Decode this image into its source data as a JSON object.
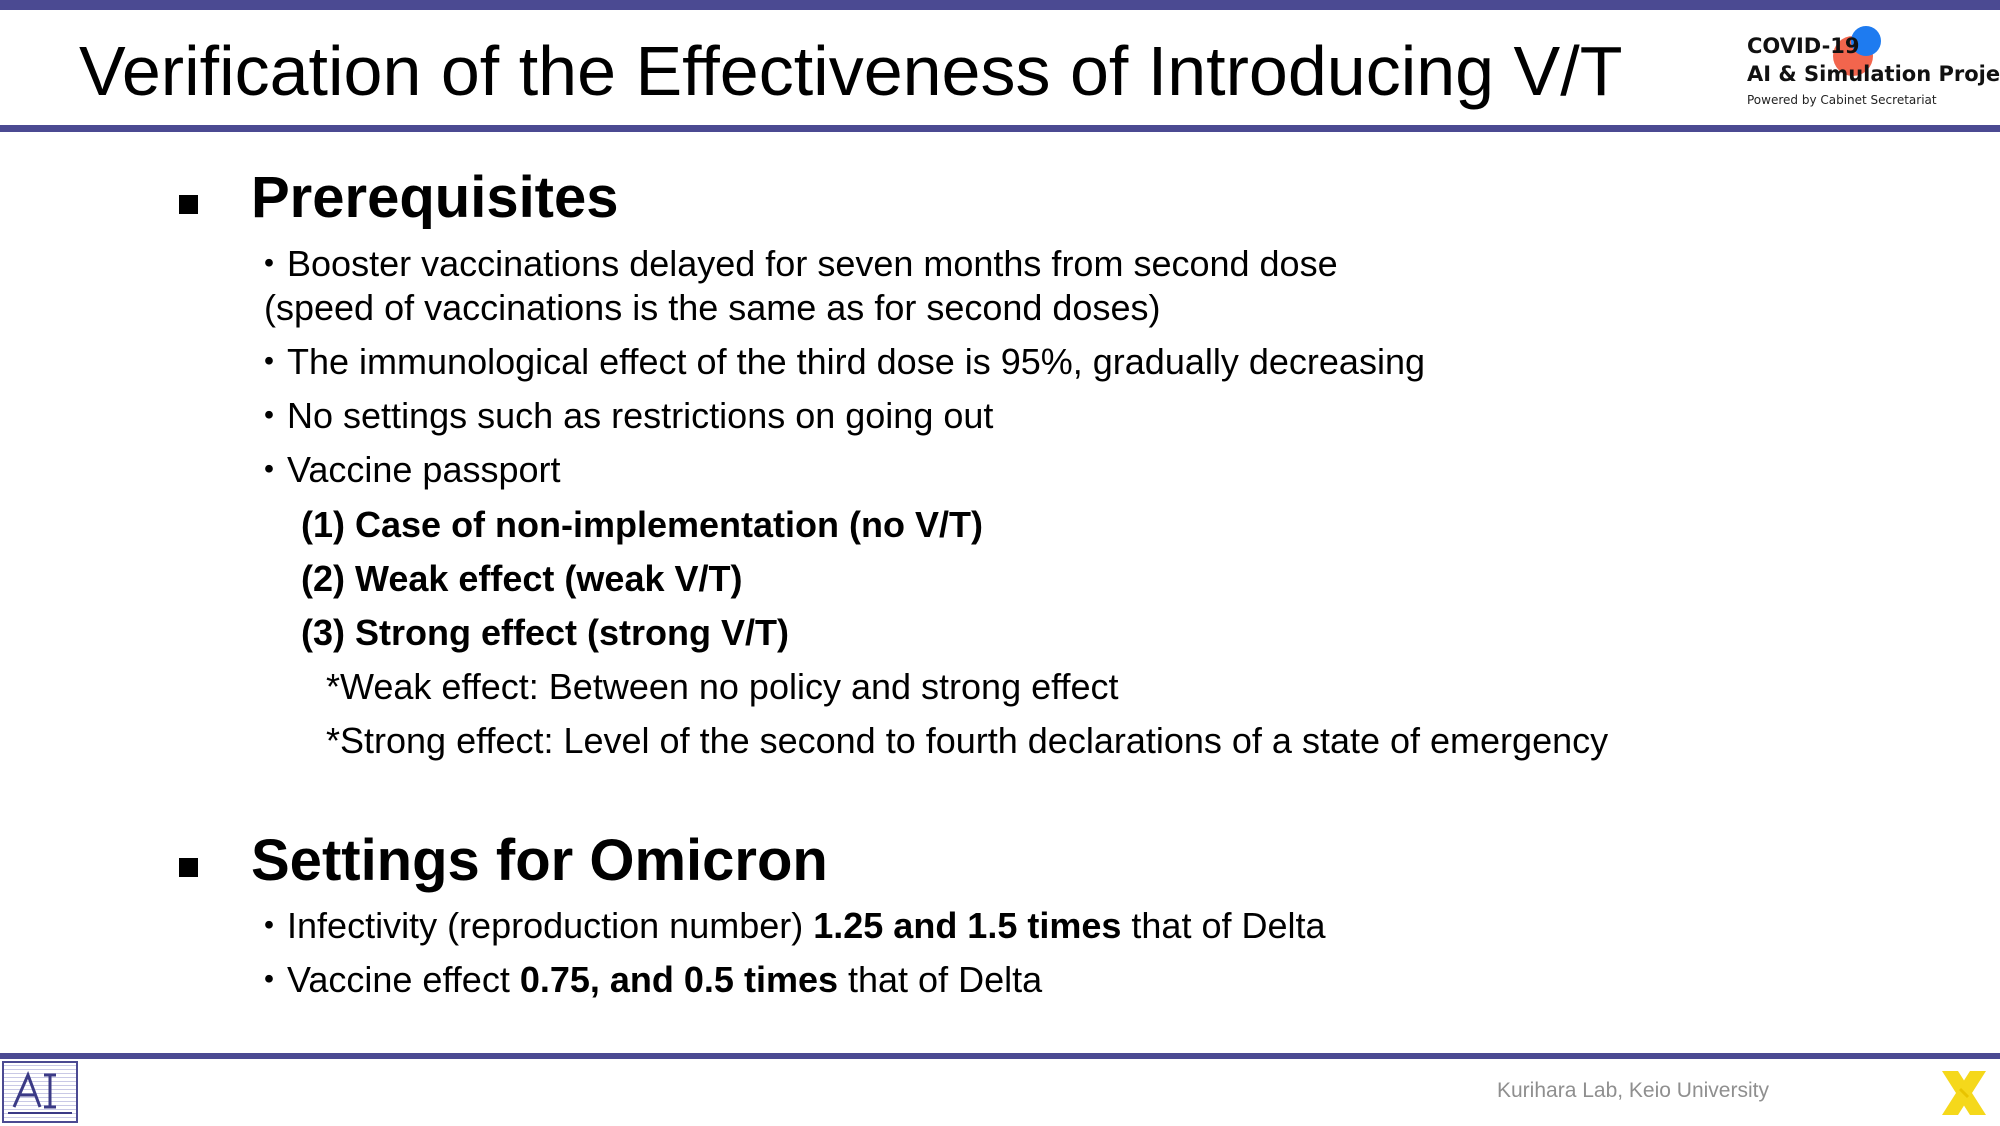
{
  "slide": {
    "title": "Verification of the Effectiveness of Introducing V/T"
  },
  "logo": {
    "line1": "COVID-19",
    "line2": "AI & Simulation Project",
    "line3": "Powered by Cabinet Secretariat",
    "colors": {
      "red_dot": "#f2654d",
      "blue_dot": "#1e7bf0"
    }
  },
  "prerequisites": {
    "heading": "Prerequisites",
    "bullet_mark": "・",
    "items": [
      "Booster vaccinations delayed for seven months from second dose",
      "(speed of vaccinations is the same as for second doses)",
      "The immunological effect of the third dose is 95%, gradually decreasing",
      "No settings such as restrictions on going out",
      "Vaccine passport"
    ],
    "cases": [
      "(1) Case of non-implementation (no V/T)",
      "(2) Weak effect (weak V/T)",
      "(3) Strong effect (strong V/T)"
    ],
    "notes": [
      "*Weak effect: Between no policy and strong effect",
      "*Strong effect: Level of the second to fourth declarations of a state of emergency"
    ]
  },
  "omicron": {
    "heading": "Settings for Omicron",
    "infectivity": {
      "prefix": "Infectivity (reproduction number) ",
      "emphasis": "1.25 and 1.5 times",
      "suffix": " that of Delta"
    },
    "vaccine": {
      "prefix": "Vaccine effect ",
      "emphasis": "0.75, and 0.5 times",
      "suffix": " that of Delta"
    }
  },
  "footer": {
    "lab": "Kurihara Lab, Keio University",
    "ai_logo_icon": "ai-lab-logo-icon",
    "x_logo_icon": "x-logo-icon"
  },
  "theme": {
    "accent": "#4b4a92",
    "x_logo": "#f5d81b"
  }
}
